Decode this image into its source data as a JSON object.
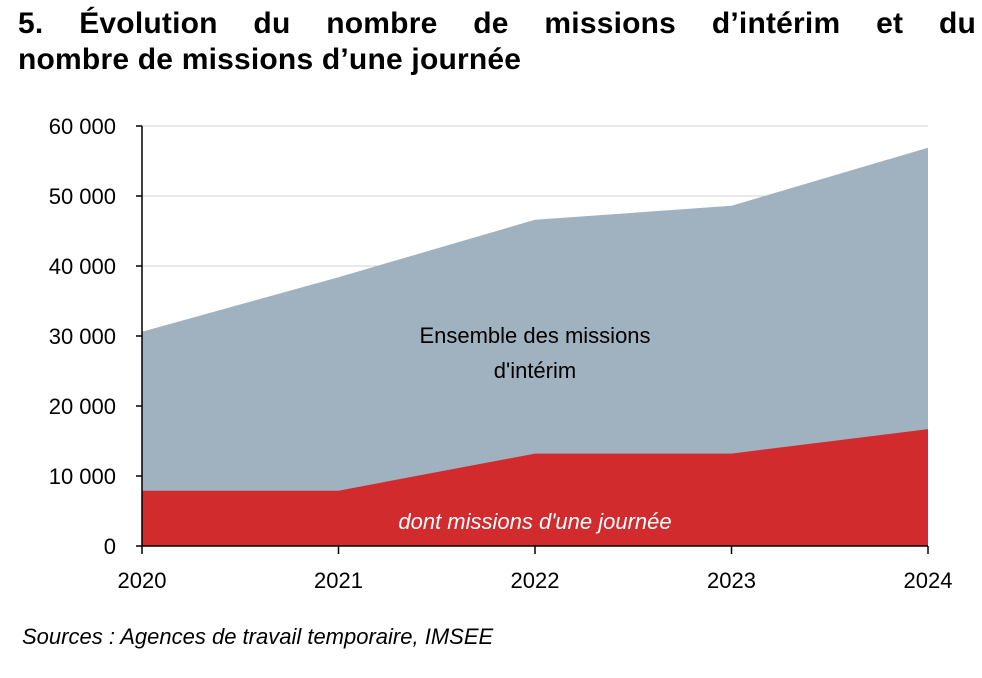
{
  "title_line1": "5. Évolution du nombre de missions d’intérim et du",
  "title_line2": "nombre de missions d’une journée",
  "source": "Sources : Agences de travail temporaire, IMSEE",
  "colors": {
    "total": "#a0b1bf",
    "one_day": "#d12b2e",
    "grid": "#d0d0d0",
    "axis": "#000000"
  },
  "chart_data": {
    "type": "area",
    "x": [
      "2020",
      "2021",
      "2022",
      "2023",
      "2024"
    ],
    "series": [
      {
        "name": "Ensemble des missions d'intérim",
        "values": [
          30600,
          38400,
          46600,
          48600,
          56900
        ]
      },
      {
        "name": "dont missions d'une journée",
        "values": [
          7900,
          7900,
          13200,
          13200,
          16700
        ]
      }
    ],
    "area_labels": {
      "total_line1": "Ensemble des missions",
      "total_line2": "d'intérim",
      "one_day": "dont missions d'une journée"
    },
    "ylim": [
      0,
      60000
    ],
    "yticks": [
      0,
      10000,
      20000,
      30000,
      40000,
      50000,
      60000
    ],
    "ytick_labels": [
      "0",
      "10 000",
      "20 000",
      "30 000",
      "40 000",
      "50 000",
      "60 000"
    ],
    "grid": true,
    "legend": "none"
  }
}
